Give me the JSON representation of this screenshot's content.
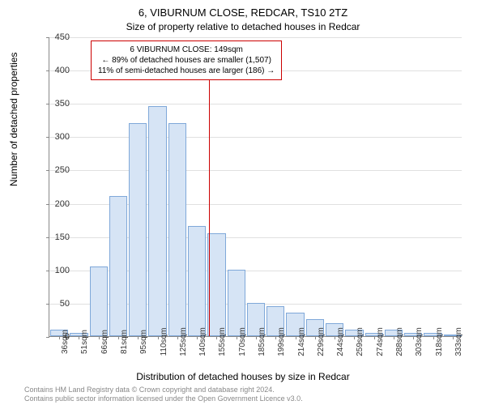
{
  "chart": {
    "type": "histogram",
    "title_main": "6, VIBURNUM CLOSE, REDCAR, TS10 2TZ",
    "title_sub": "Size of property relative to detached houses in Redcar",
    "title_fontsize": 13,
    "subtitle_fontsize": 12,
    "ylabel": "Number of detached properties",
    "xlabel": "Distribution of detached houses by size in Redcar",
    "label_fontsize": 12,
    "background_color": "#ffffff",
    "grid_color": "#e0e0e0",
    "axis_color": "#888888",
    "bar_fill": "#d6e4f5",
    "bar_border": "#7fa8d9",
    "vline_color": "#cc0000",
    "ylim": [
      0,
      450
    ],
    "ytick_step": 50,
    "yticks": [
      0,
      50,
      100,
      150,
      200,
      250,
      300,
      350,
      400,
      450
    ],
    "xticks": [
      "36sqm",
      "51sqm",
      "66sqm",
      "81sqm",
      "95sqm",
      "110sqm",
      "125sqm",
      "140sqm",
      "155sqm",
      "170sqm",
      "185sqm",
      "199sqm",
      "214sqm",
      "229sqm",
      "244sqm",
      "259sqm",
      "274sqm",
      "288sqm",
      "303sqm",
      "318sqm",
      "333sqm"
    ],
    "values": [
      10,
      5,
      105,
      210,
      320,
      345,
      320,
      165,
      155,
      100,
      50,
      45,
      35,
      25,
      20,
      10,
      5,
      10,
      5,
      5,
      3
    ],
    "vline_x_index": 8,
    "annotation": {
      "line1": "6 VIBURNUM CLOSE: 149sqm",
      "line2": "← 89% of detached houses are smaller (1,507)",
      "line3": "11% of semi-detached houses are larger (186) →",
      "border_color": "#cc0000",
      "fontsize": 10
    },
    "footer_lines": [
      "Contains HM Land Registry data © Crown copyright and database right 2024.",
      "Contains public sector information licensed under the Open Government Licence v3.0."
    ],
    "footer_color": "#888888",
    "footer_fontsize": 9
  }
}
